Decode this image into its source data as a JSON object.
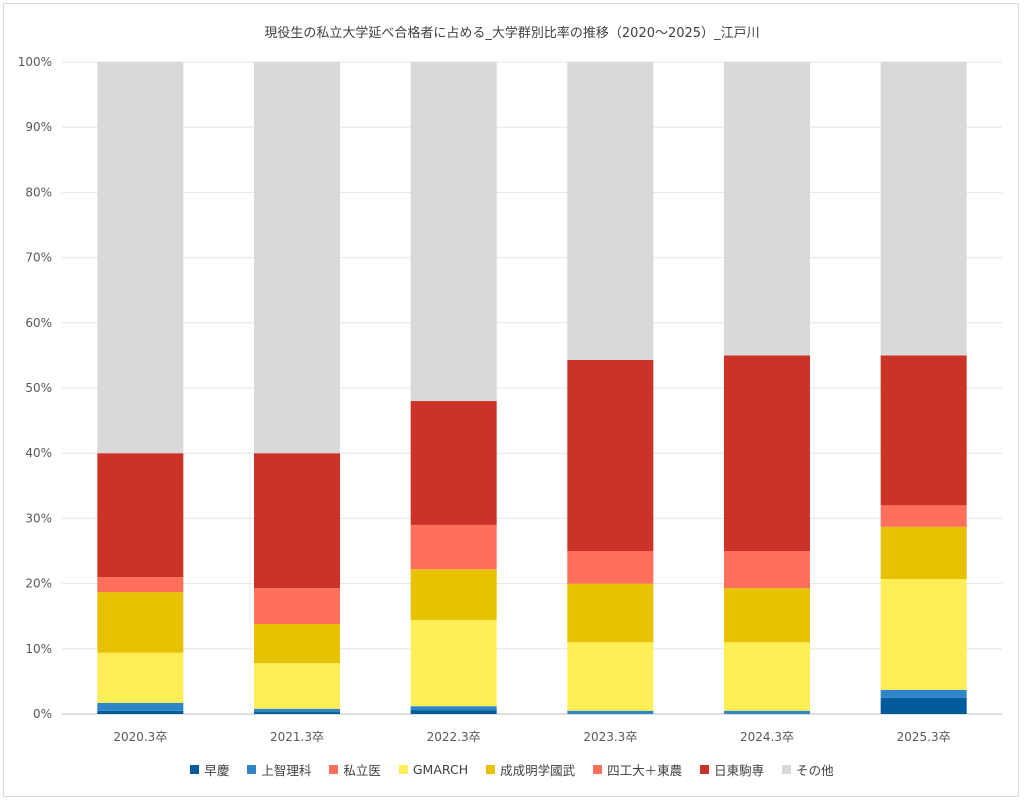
{
  "chart_data": {
    "type": "bar",
    "stacked": true,
    "title": "現役生の私立大学延べ合格者に占める_大学群別比率の推移（2020～2025）_江戸川",
    "categories": [
      "2020.3卒",
      "2021.3卒",
      "2022.3卒",
      "2023.3卒",
      "2024.3卒",
      "2025.3卒"
    ],
    "y_ticks": [
      "0%",
      "10%",
      "20%",
      "30%",
      "40%",
      "50%",
      "60%",
      "70%",
      "80%",
      "90%",
      "100%"
    ],
    "ylim": [
      0,
      100
    ],
    "grid": true,
    "legend_position": "bottom",
    "series": [
      {
        "name": "早慶",
        "color": "#005a9c",
        "values": [
          0.5,
          0.3,
          0.6,
          0.0,
          0.0,
          2.5
        ]
      },
      {
        "name": "上智理科",
        "color": "#2e86c8",
        "values": [
          1.2,
          0.5,
          0.6,
          0.5,
          0.5,
          1.2
        ]
      },
      {
        "name": "私立医",
        "color": "#ff6f5c",
        "values": [
          0.0,
          0.0,
          0.0,
          0.0,
          0.0,
          0.0
        ]
      },
      {
        "name": "GMARCH",
        "color": "#ffee55",
        "values": [
          7.7,
          7.0,
          13.2,
          10.5,
          10.5,
          17.0
        ]
      },
      {
        "name": "成成明学國武",
        "color": "#e6c200",
        "values": [
          9.3,
          6.0,
          7.8,
          9.0,
          8.3,
          8.0
        ]
      },
      {
        "name": "四工大＋東農",
        "color": "#ff6f5c",
        "values": [
          2.3,
          5.5,
          6.8,
          5.0,
          5.7,
          3.3
        ]
      },
      {
        "name": "日東駒専",
        "color": "#cc3328",
        "values": [
          19.0,
          20.7,
          19.0,
          29.3,
          30.0,
          23.0
        ]
      },
      {
        "name": "その他",
        "color": "#d9d9d9",
        "values": [
          60.0,
          60.0,
          52.0,
          45.7,
          45.0,
          45.0
        ]
      }
    ]
  }
}
